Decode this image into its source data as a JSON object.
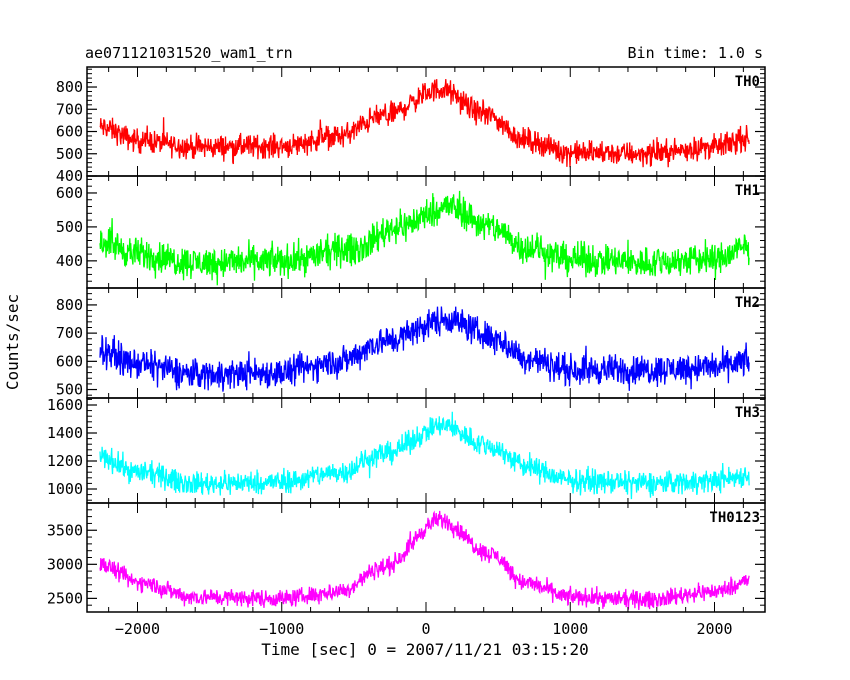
{
  "chart_data": {
    "type": "line",
    "title": "ae071121031520_wam1_trn",
    "bin_time": "Bin time: 1.0 s",
    "xlabel": "Time [sec] 0 = 2007/11/21 03:15:20",
    "ylabel": "Counts/sec",
    "xlim": [
      -2350,
      2350
    ],
    "x_range": [
      -2260,
      2240
    ],
    "xticks": [
      -2000,
      -1000,
      0,
      1000,
      2000
    ],
    "xtick_labels": [
      "−2000",
      "−1000",
      "0",
      "1000",
      "2000"
    ],
    "grid": false,
    "panels": [
      {
        "name": "TH0",
        "color": "#ff0000",
        "ylim": [
          400,
          890
        ],
        "yticks": [
          400,
          500,
          600,
          700,
          800
        ],
        "ytick_labels": [
          "400",
          "500",
          "600",
          "700",
          "800"
        ],
        "baseline_points": [
          [
            -2260,
            620
          ],
          [
            -2000,
            560
          ],
          [
            -1600,
            530
          ],
          [
            -1000,
            535
          ],
          [
            -600,
            580
          ],
          [
            -300,
            670
          ],
          [
            100,
            790
          ],
          [
            400,
            680
          ],
          [
            700,
            560
          ],
          [
            1000,
            505
          ],
          [
            1500,
            500
          ],
          [
            2000,
            530
          ],
          [
            2240,
            570
          ]
        ],
        "noise": 45
      },
      {
        "name": "TH1",
        "color": "#00ff00",
        "ylim": [
          320,
          650
        ],
        "yticks": [
          400,
          500,
          600
        ],
        "ytick_labels": [
          "400",
          "500",
          "600"
        ],
        "baseline_points": [
          [
            -2260,
            460
          ],
          [
            -2000,
            420
          ],
          [
            -1600,
            395
          ],
          [
            -1000,
            400
          ],
          [
            -500,
            435
          ],
          [
            -200,
            500
          ],
          [
            150,
            560
          ],
          [
            450,
            500
          ],
          [
            700,
            440
          ],
          [
            1000,
            405
          ],
          [
            1500,
            395
          ],
          [
            2000,
            405
          ],
          [
            2240,
            440
          ]
        ],
        "noise": 40
      },
      {
        "name": "TH2",
        "color": "#0000ff",
        "ylim": [
          470,
          860
        ],
        "yticks": [
          500,
          600,
          700,
          800
        ],
        "ytick_labels": [
          "500",
          "600",
          "700",
          "800"
        ],
        "baseline_points": [
          [
            -2260,
            640
          ],
          [
            -2000,
            590
          ],
          [
            -1600,
            555
          ],
          [
            -1000,
            560
          ],
          [
            -600,
            600
          ],
          [
            -300,
            670
          ],
          [
            150,
            750
          ],
          [
            450,
            690
          ],
          [
            700,
            610
          ],
          [
            1000,
            570
          ],
          [
            1500,
            570
          ],
          [
            2000,
            580
          ],
          [
            2240,
            600
          ]
        ],
        "noise": 45
      },
      {
        "name": "TH3",
        "color": "#00ffff",
        "ylim": [
          900,
          1650
        ],
        "yticks": [
          1000,
          1200,
          1400,
          1600
        ],
        "ytick_labels": [
          "1000",
          "1200",
          "1400",
          "1600"
        ],
        "baseline_points": [
          [
            -2260,
            1230
          ],
          [
            -2000,
            1120
          ],
          [
            -1600,
            1040
          ],
          [
            -1000,
            1050
          ],
          [
            -600,
            1120
          ],
          [
            -300,
            1250
          ],
          [
            120,
            1450
          ],
          [
            450,
            1300
          ],
          [
            700,
            1160
          ],
          [
            1000,
            1060
          ],
          [
            1500,
            1040
          ],
          [
            2000,
            1060
          ],
          [
            2240,
            1100
          ]
        ],
        "noise": 70
      },
      {
        "name": "TH0123",
        "color": "#ff00ff",
        "ylim": [
          2300,
          3900
        ],
        "yticks": [
          2500,
          3000,
          3500
        ],
        "ytick_labels": [
          "2500",
          "3000",
          "3500"
        ],
        "baseline_points": [
          [
            -2260,
            3000
          ],
          [
            -2000,
            2740
          ],
          [
            -1600,
            2520
          ],
          [
            -1000,
            2500
          ],
          [
            -600,
            2600
          ],
          [
            -300,
            2950
          ],
          [
            100,
            3650
          ],
          [
            450,
            3150
          ],
          [
            700,
            2720
          ],
          [
            1000,
            2520
          ],
          [
            1500,
            2480
          ],
          [
            2000,
            2600
          ],
          [
            2240,
            2760
          ]
        ],
        "noise": 110
      }
    ]
  }
}
